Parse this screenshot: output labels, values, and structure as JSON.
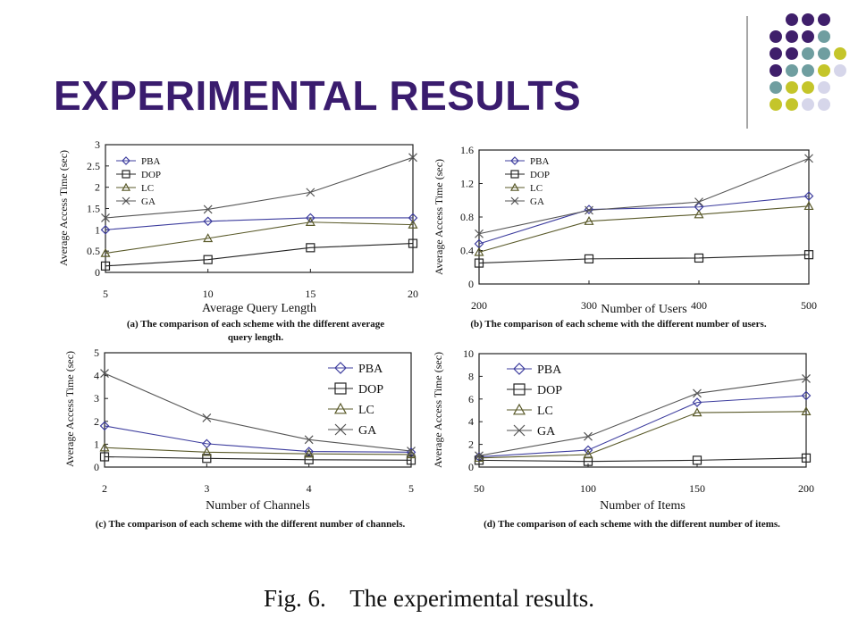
{
  "slide": {
    "title": "EXPERIMENTAL RESULTS",
    "figure_caption": "Fig. 6.    The experimental results."
  },
  "decoration": {
    "dot_colors": [
      "#3f1f6b",
      "#6f9ea0",
      "#c4c52a",
      "#d6d6ea"
    ]
  },
  "chart_data": [
    {
      "type": "line",
      "id": "a",
      "xlabel": "Average Query Length",
      "ylabel": "Average Access Time (sec)",
      "caption": [
        "(a) The comparison of each scheme with the different average",
        "query length."
      ],
      "x": [
        5,
        10,
        15,
        20
      ],
      "xticks": [
        "5",
        "10",
        "15",
        "20"
      ],
      "ylim": [
        0,
        3
      ],
      "yticks": [
        "0",
        "0.5",
        "1",
        "1.5",
        "2",
        "2.5",
        "3"
      ],
      "legend": "top-left",
      "series": [
        {
          "name": "PBA",
          "marker": "diamond",
          "color": "#3d3d9e",
          "values": [
            1.0,
            1.2,
            1.28,
            1.28
          ]
        },
        {
          "name": "DOP",
          "marker": "square",
          "color": "#222222",
          "values": [
            0.15,
            0.3,
            0.58,
            0.68
          ]
        },
        {
          "name": "LC",
          "marker": "triangle",
          "color": "#5a5a2a",
          "values": [
            0.45,
            0.8,
            1.18,
            1.12
          ]
        },
        {
          "name": "GA",
          "marker": "x",
          "color": "#555555",
          "values": [
            1.28,
            1.48,
            1.88,
            2.7
          ]
        }
      ]
    },
    {
      "type": "line",
      "id": "b",
      "xlabel": "Number of Users",
      "ylabel": "Average Access Time (sec)",
      "caption": [
        "(b) The comparison of each scheme with the different number of users."
      ],
      "x": [
        200,
        300,
        400,
        500
      ],
      "xticks": [
        "200",
        "300",
        "400",
        "500"
      ],
      "ylim": [
        0,
        1.6
      ],
      "yticks": [
        "0",
        "0.4",
        "0.8",
        "1.2",
        "1.6"
      ],
      "legend": "top-left",
      "series": [
        {
          "name": "PBA",
          "marker": "diamond",
          "color": "#3d3d9e",
          "values": [
            0.48,
            0.89,
            0.92,
            1.05
          ]
        },
        {
          "name": "DOP",
          "marker": "square",
          "color": "#222222",
          "values": [
            0.25,
            0.3,
            0.31,
            0.35
          ]
        },
        {
          "name": "LC",
          "marker": "triangle",
          "color": "#5a5a2a",
          "values": [
            0.38,
            0.75,
            0.83,
            0.93
          ]
        },
        {
          "name": "GA",
          "marker": "x",
          "color": "#555555",
          "values": [
            0.6,
            0.88,
            0.98,
            1.5
          ]
        }
      ]
    },
    {
      "type": "line",
      "id": "c",
      "xlabel": "Number of Channels",
      "ylabel": "Average Access Time (sec)",
      "caption": [
        "(c) The comparison of each scheme with the different number of channels."
      ],
      "x": [
        2,
        3,
        4,
        5
      ],
      "xticks": [
        "2",
        "3",
        "4",
        "5"
      ],
      "ylim": [
        0,
        5
      ],
      "yticks": [
        "0",
        "1",
        "2",
        "3",
        "4",
        "5"
      ],
      "legend": "top-right",
      "series": [
        {
          "name": "PBA",
          "marker": "diamond",
          "color": "#3d3d9e",
          "values": [
            1.8,
            1.02,
            0.68,
            0.65
          ]
        },
        {
          "name": "DOP",
          "marker": "square",
          "color": "#222222",
          "values": [
            0.45,
            0.38,
            0.32,
            0.3
          ]
        },
        {
          "name": "LC",
          "marker": "triangle",
          "color": "#5a5a2a",
          "values": [
            0.85,
            0.65,
            0.58,
            0.55
          ]
        },
        {
          "name": "GA",
          "marker": "x",
          "color": "#555555",
          "values": [
            4.1,
            2.15,
            1.2,
            0.7
          ]
        }
      ]
    },
    {
      "type": "line",
      "id": "d",
      "xlabel": "Number of Items",
      "ylabel": "Average Access Time (sec)",
      "caption": [
        "(d) The comparison of each scheme with the different number of items."
      ],
      "x": [
        50,
        100,
        150,
        200
      ],
      "xticks": [
        "50",
        "100",
        "150",
        "200"
      ],
      "ylim": [
        0,
        10
      ],
      "yticks": [
        "0",
        "2",
        "4",
        "6",
        "8",
        "10"
      ],
      "legend": "top-left",
      "series": [
        {
          "name": "PBA",
          "marker": "diamond",
          "color": "#3d3d9e",
          "values": [
            0.9,
            1.5,
            5.7,
            6.3
          ]
        },
        {
          "name": "DOP",
          "marker": "square",
          "color": "#222222",
          "values": [
            0.6,
            0.5,
            0.6,
            0.8
          ]
        },
        {
          "name": "LC",
          "marker": "triangle",
          "color": "#5a5a2a",
          "values": [
            0.8,
            1.1,
            4.8,
            4.9
          ]
        },
        {
          "name": "GA",
          "marker": "x",
          "color": "#555555",
          "values": [
            1.0,
            2.7,
            6.5,
            7.8
          ]
        }
      ]
    }
  ]
}
